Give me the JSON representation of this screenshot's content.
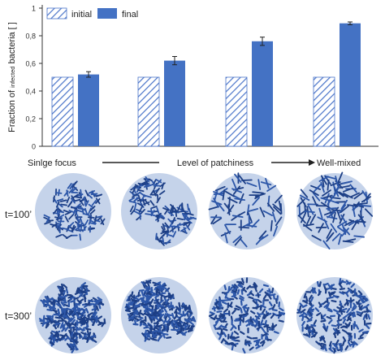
{
  "chart_data": {
    "type": "bar",
    "categories": [
      "Sinlge focus",
      "",
      "",
      "Well-mixed"
    ],
    "series": [
      {
        "name": "initial",
        "values": [
          0.5,
          0.5,
          0.5,
          0.5
        ],
        "color": "#ffffff",
        "hatch_color": "#4a74c9",
        "pattern": "diagonal-hatch"
      },
      {
        "name": "final",
        "values": [
          0.52,
          0.62,
          0.76,
          0.89
        ],
        "errors": [
          0.02,
          0.03,
          0.03,
          0.01
        ],
        "color": "#4472c4"
      }
    ],
    "ylabel_main": "Fraction of ",
    "ylabel_small": "infected",
    "ylabel_end": " bacteria [ ]",
    "ylim": [
      0,
      1
    ],
    "yticks": [
      "0",
      "0,2",
      "0,4",
      "0,6",
      "0,8",
      "1"
    ],
    "legend_position": "top-left",
    "grid": false
  },
  "axis_annotation": {
    "left": "Sinlge focus",
    "middle": "Level of patchiness",
    "right": "Well-mixed"
  },
  "snapshots": {
    "rows": [
      {
        "label": "t=100’",
        "stage": "early"
      },
      {
        "label": "t=300’",
        "stage": "late"
      }
    ],
    "colors": {
      "background_disk": "#c5d3ea",
      "bacteria": "#2c56a8",
      "dark": "#1d3f86"
    }
  }
}
